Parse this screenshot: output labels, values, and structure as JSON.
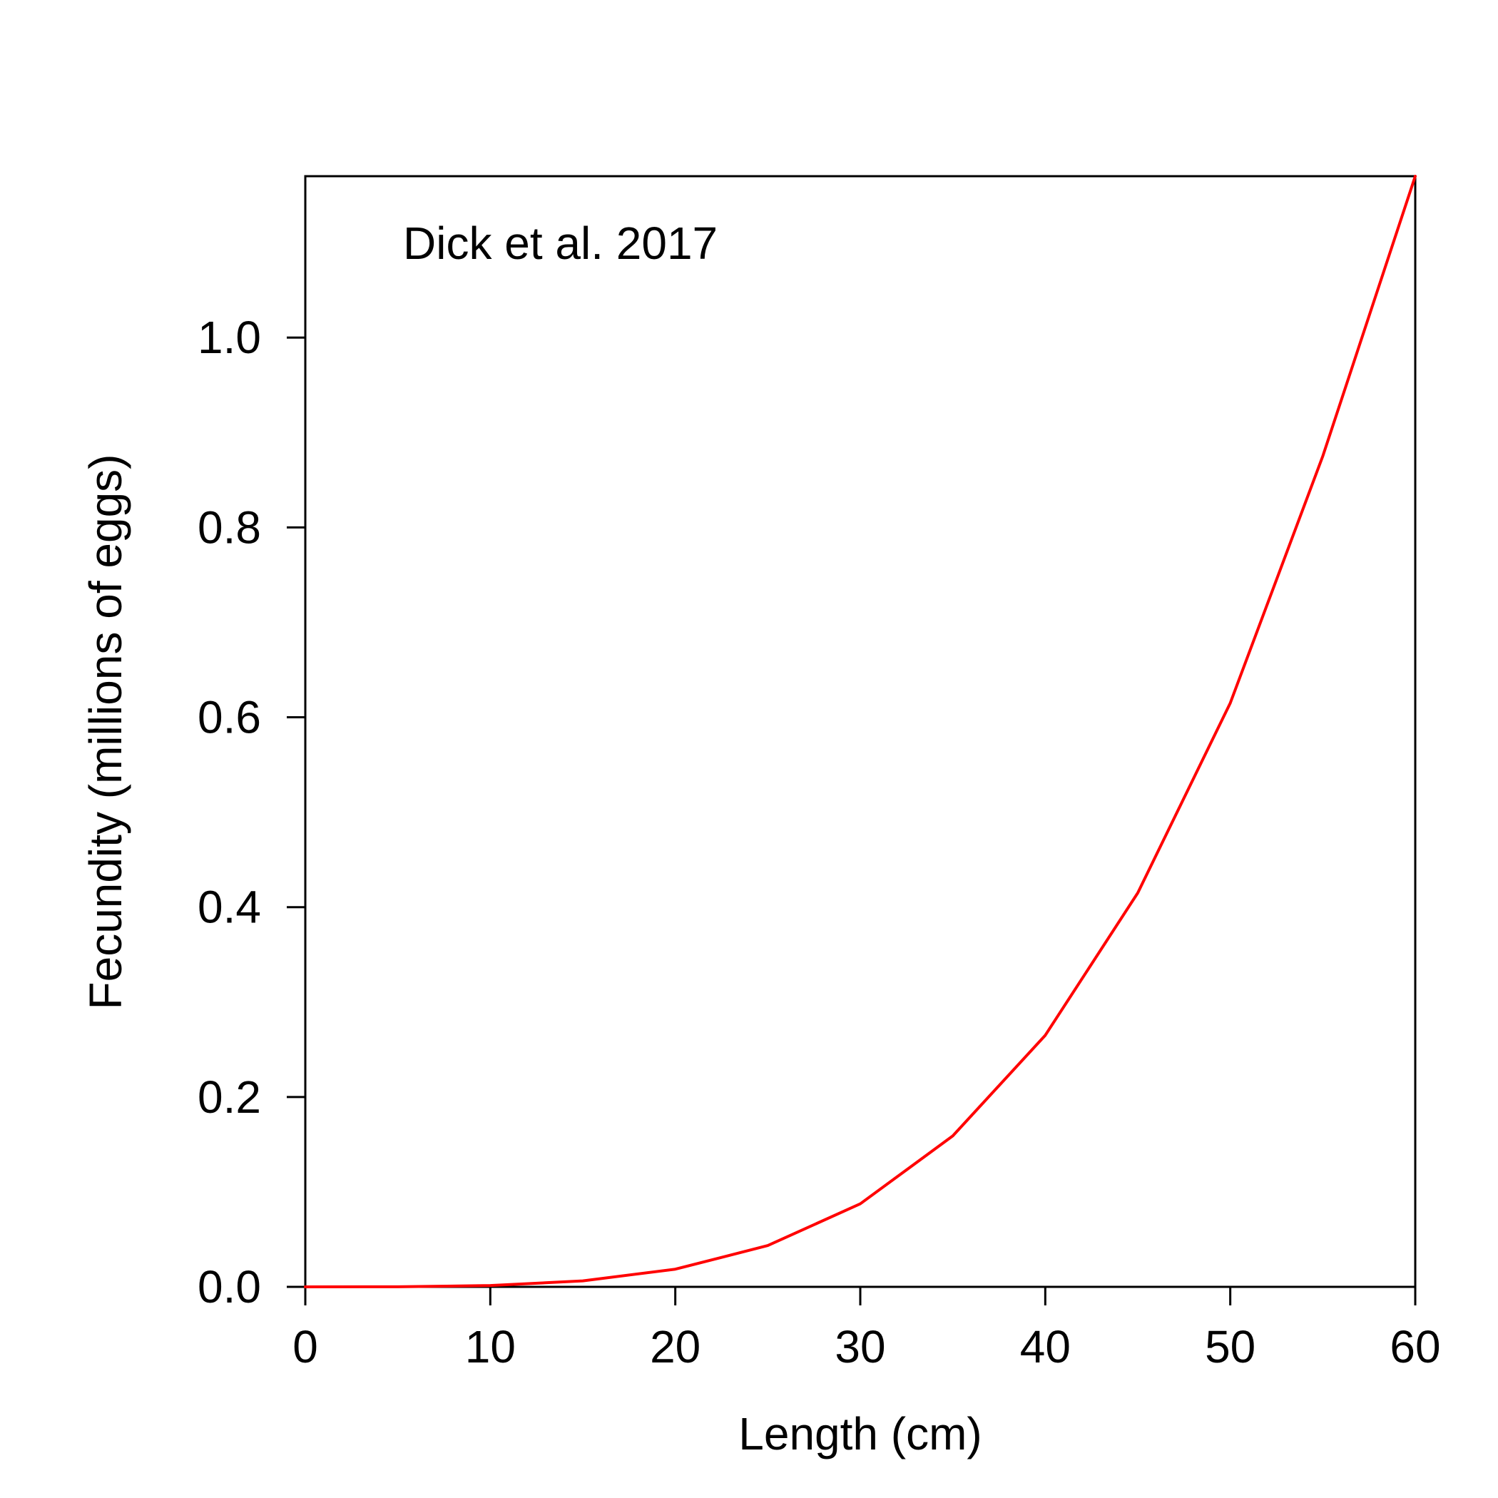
{
  "chart_data": {
    "type": "line",
    "title": "",
    "annotation": "Dick et al. 2017",
    "xlabel": "Length (cm)",
    "ylabel": "Fecundity (millions of eggs)",
    "xlim": [
      0,
      60
    ],
    "ylim": [
      0,
      1.17
    ],
    "xticks": [
      "0",
      "10",
      "20",
      "30",
      "40",
      "50",
      "60"
    ],
    "yticks": [
      "0.0",
      "0.2",
      "0.4",
      "0.6",
      "0.8",
      "1.0"
    ],
    "grid": false,
    "legend": "none",
    "line_color": "#ff0000",
    "series": [
      {
        "x": [
          0,
          5,
          10,
          15,
          20,
          25,
          30,
          35,
          40,
          45,
          50,
          55,
          60
        ],
        "y": [
          0.0,
          0.0001,
          0.0014,
          0.0063,
          0.0186,
          0.0435,
          0.0875,
          0.159,
          0.265,
          0.415,
          0.615,
          0.875,
          1.17
        ]
      }
    ]
  }
}
